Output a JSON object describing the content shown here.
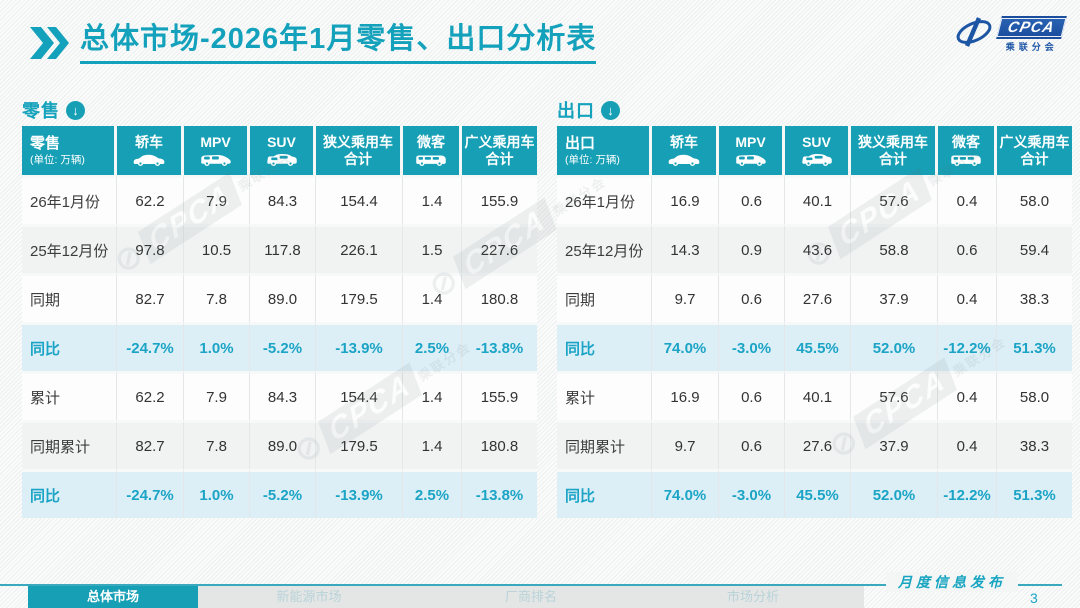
{
  "slide": {
    "title": {
      "bold_part": "总体市场",
      "regular_part": "-2026年1月零售、出口分析表"
    },
    "logo": {
      "name": "CPCA",
      "caption": "乘联分会"
    },
    "colors": {
      "accent_teal": "#17a0b5",
      "pct_text": "#1ba4c6",
      "pct_row_bg": "#ddeff6",
      "logo_blue": "#1d55a5"
    }
  },
  "tables": [
    {
      "id": "retail",
      "section_label": "零售",
      "unit": "(单位: 万辆)",
      "columns": [
        {
          "label": "轿车",
          "icon": "sedan-icon"
        },
        {
          "label": "MPV",
          "icon": "mpv-icon"
        },
        {
          "label": "SUV",
          "icon": "suv-icon"
        },
        {
          "label": "狭义乘用车",
          "label2": "合计"
        },
        {
          "label": "微客",
          "icon": "microvan-icon"
        },
        {
          "label": "广义乘用车",
          "label2": "合计"
        }
      ],
      "rows": [
        {
          "label": "26年1月份",
          "type": "data",
          "values": [
            "62.2",
            "7.9",
            "84.3",
            "154.4",
            "1.4",
            "155.9"
          ]
        },
        {
          "label": "25年12月份",
          "type": "alt",
          "values": [
            "97.8",
            "10.5",
            "117.8",
            "226.1",
            "1.5",
            "227.6"
          ]
        },
        {
          "label": "同期",
          "type": "data",
          "values": [
            "82.7",
            "7.8",
            "89.0",
            "179.5",
            "1.4",
            "180.8"
          ]
        },
        {
          "label": "同比",
          "type": "pct",
          "values": [
            "-24.7%",
            "1.0%",
            "-5.2%",
            "-13.9%",
            "2.5%",
            "-13.8%"
          ]
        },
        {
          "label": "累计",
          "type": "data",
          "values": [
            "62.2",
            "7.9",
            "84.3",
            "154.4",
            "1.4",
            "155.9"
          ]
        },
        {
          "label": "同期累计",
          "type": "alt",
          "values": [
            "82.7",
            "7.8",
            "89.0",
            "179.5",
            "1.4",
            "180.8"
          ]
        },
        {
          "label": "同比",
          "type": "pct",
          "values": [
            "-24.7%",
            "1.0%",
            "-5.2%",
            "-13.9%",
            "2.5%",
            "-13.8%"
          ]
        }
      ]
    },
    {
      "id": "export",
      "section_label": "出口",
      "unit": "(单位: 万辆)",
      "columns": [
        {
          "label": "轿车",
          "icon": "sedan-icon"
        },
        {
          "label": "MPV",
          "icon": "mpv-icon"
        },
        {
          "label": "SUV",
          "icon": "suv-icon"
        },
        {
          "label": "狭义乘用车",
          "label2": "合计"
        },
        {
          "label": "微客",
          "icon": "microvan-icon"
        },
        {
          "label": "广义乘用车",
          "label2": "合计"
        }
      ],
      "rows": [
        {
          "label": "26年1月份",
          "type": "data",
          "values": [
            "16.9",
            "0.6",
            "40.1",
            "57.6",
            "0.4",
            "58.0"
          ]
        },
        {
          "label": "25年12月份",
          "type": "alt",
          "values": [
            "14.3",
            "0.9",
            "43.6",
            "58.8",
            "0.6",
            "59.4"
          ]
        },
        {
          "label": "同期",
          "type": "data",
          "values": [
            "9.7",
            "0.6",
            "27.6",
            "37.9",
            "0.4",
            "38.3"
          ]
        },
        {
          "label": "同比",
          "type": "pct",
          "values": [
            "74.0%",
            "-3.0%",
            "45.5%",
            "52.0%",
            "-12.2%",
            "51.3%"
          ]
        },
        {
          "label": "累计",
          "type": "data",
          "values": [
            "16.9",
            "0.6",
            "40.1",
            "57.6",
            "0.4",
            "58.0"
          ]
        },
        {
          "label": "同期累计",
          "type": "alt",
          "values": [
            "9.7",
            "0.6",
            "27.6",
            "37.9",
            "0.4",
            "38.3"
          ]
        },
        {
          "label": "同比",
          "type": "pct",
          "values": [
            "74.0%",
            "-3.0%",
            "45.5%",
            "52.0%",
            "-12.2%",
            "51.3%"
          ]
        }
      ]
    }
  ],
  "footer": {
    "tabs": [
      {
        "label": "总体市场",
        "active": true
      },
      {
        "label": "新能源市场",
        "active": false
      },
      {
        "label": "厂商排名",
        "active": false
      },
      {
        "label": "市场分析",
        "active": false
      }
    ],
    "release_note": "月度信息发布",
    "page_number": "3"
  },
  "watermark": {
    "text": "CPCA",
    "subtext": "乘联分会"
  }
}
